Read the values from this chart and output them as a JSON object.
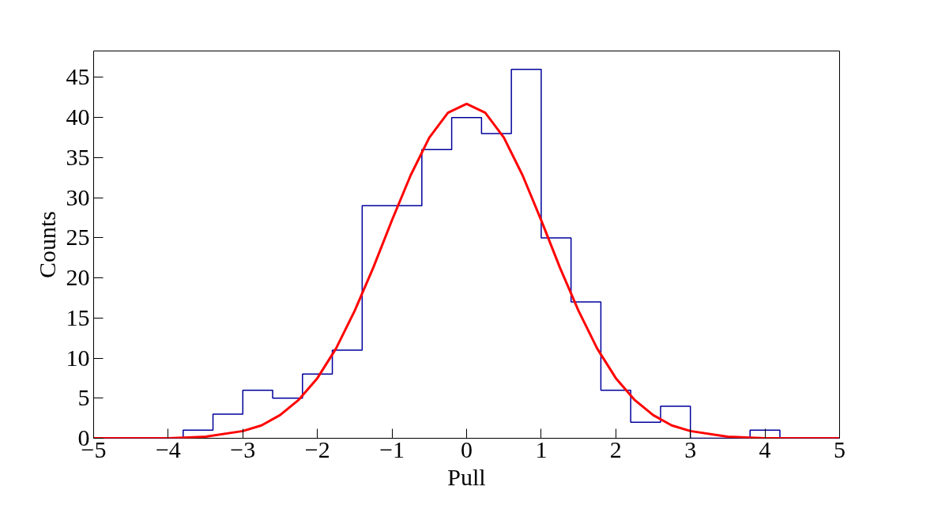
{
  "chart_data": {
    "type": "histogram",
    "xlabel": "Pull",
    "ylabel": "Counts",
    "bins": [
      -5,
      -4.6,
      -4.2,
      -3.8,
      -3.4,
      -3.0,
      -2.6,
      -2.2,
      -1.8,
      -1.4,
      -1.0,
      -0.6,
      -0.2,
      0.2,
      0.6,
      1.0,
      1.4,
      1.8,
      2.2,
      2.6,
      3.0,
      3.4,
      3.8,
      4.2,
      4.6,
      5.0
    ],
    "values": [
      0,
      0,
      0,
      1,
      3,
      6,
      5,
      8,
      11,
      29,
      29,
      36,
      40,
      38,
      46,
      25,
      17,
      6,
      2,
      4,
      0,
      0,
      1,
      0,
      0
    ],
    "color": "#00009c",
    "series": [
      {
        "type": "line",
        "color": "#ff0000",
        "x": [
          -5,
          -4,
          -3.5,
          -3,
          -2.75,
          -2.5,
          -2.25,
          -2,
          -1.75,
          -1.5,
          -1.25,
          -1,
          -0.75,
          -0.5,
          -0.25,
          0,
          0.25,
          0.5,
          0.75,
          1,
          1.25,
          1.5,
          1.75,
          2,
          2.25,
          2.5,
          2.75,
          3,
          3.5,
          4,
          5
        ],
        "values": [
          0,
          0,
          0.2,
          0.9,
          1.6,
          2.9,
          4.8,
          7.5,
          11.2,
          15.9,
          21.3,
          27.2,
          32.8,
          37.5,
          40.6,
          41.7,
          40.6,
          37.5,
          32.8,
          27.2,
          21.3,
          15.9,
          11.2,
          7.5,
          4.8,
          2.9,
          1.6,
          0.9,
          0.2,
          0,
          0
        ]
      }
    ],
    "xlim": [
      -5,
      5
    ],
    "ylim": [
      0,
      48.3
    ],
    "xticks": [
      {
        "value": -5,
        "label": "−5"
      },
      {
        "value": -4,
        "label": "−4"
      },
      {
        "value": -3,
        "label": "−3"
      },
      {
        "value": -2,
        "label": "−2"
      },
      {
        "value": -1,
        "label": "−1"
      },
      0,
      1,
      2,
      3,
      4,
      5
    ],
    "yticks": [
      0,
      5,
      10,
      15,
      20,
      25,
      30,
      35,
      40,
      45
    ],
    "grid": false
  }
}
